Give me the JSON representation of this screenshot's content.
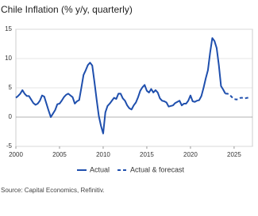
{
  "chart_data": {
    "type": "line",
    "title": "Chile Inflation (% y/y, quarterly)",
    "source": "Source: Capital Economics, Refinitiv.",
    "xlim": [
      2000,
      2027.1
    ],
    "xticks": [
      2000,
      2005,
      2010,
      2015,
      2020,
      2025
    ],
    "ylim": [
      -5,
      15
    ],
    "yticks": [
      -5,
      0,
      5,
      10,
      15
    ],
    "grid": true,
    "series": [
      {
        "name": "Actual",
        "color": "#1f4fad",
        "dashed": false,
        "x": [
          2000,
          2000.25,
          2000.5,
          2000.75,
          2001,
          2001.25,
          2001.5,
          2001.75,
          2002,
          2002.25,
          2002.5,
          2002.75,
          2003,
          2003.25,
          2003.5,
          2003.75,
          2004,
          2004.25,
          2004.5,
          2004.75,
          2005,
          2005.25,
          2005.5,
          2005.75,
          2006,
          2006.25,
          2006.5,
          2006.75,
          2007,
          2007.25,
          2007.5,
          2007.75,
          2008,
          2008.25,
          2008.5,
          2008.75,
          2009,
          2009.25,
          2009.5,
          2009.75,
          2010,
          2010.25,
          2010.5,
          2010.75,
          2011,
          2011.25,
          2011.5,
          2011.75,
          2012,
          2012.25,
          2012.5,
          2012.75,
          2013,
          2013.25,
          2013.5,
          2013.75,
          2014,
          2014.25,
          2014.5,
          2014.75,
          2015,
          2015.25,
          2015.5,
          2015.75,
          2016,
          2016.25,
          2016.5,
          2016.75,
          2017,
          2017.25,
          2017.5,
          2017.75,
          2018,
          2018.25,
          2018.5,
          2018.75,
          2019,
          2019.25,
          2019.5,
          2019.75,
          2020,
          2020.25,
          2020.5,
          2020.75,
          2021,
          2021.25,
          2021.5,
          2021.75,
          2022,
          2022.25,
          2022.5,
          2022.75,
          2023,
          2023.25,
          2023.5,
          2023.75,
          2024
        ],
        "values": [
          3.3,
          3.6,
          4.0,
          4.6,
          4.0,
          3.6,
          3.6,
          3.0,
          2.4,
          2.1,
          2.3,
          2.8,
          3.7,
          3.5,
          2.3,
          1.1,
          0.0,
          0.6,
          1.2,
          2.2,
          2.3,
          2.8,
          3.4,
          3.8,
          4.0,
          3.7,
          3.4,
          2.3,
          2.7,
          2.9,
          5.0,
          7.2,
          8.0,
          8.9,
          9.3,
          8.8,
          6.0,
          3.0,
          0.2,
          -1.5,
          -2.8,
          0.8,
          1.9,
          2.3,
          2.8,
          3.3,
          3.1,
          4.0,
          4.0,
          3.2,
          2.8,
          2.0,
          1.5,
          1.3,
          2.0,
          2.5,
          3.4,
          4.5,
          5.1,
          5.5,
          4.5,
          4.2,
          4.8,
          4.2,
          4.6,
          4.2,
          3.2,
          2.8,
          2.7,
          2.5,
          1.8,
          1.9,
          2.0,
          2.4,
          2.6,
          2.8,
          2.0,
          2.3,
          2.3,
          2.8,
          3.7,
          2.7,
          2.6,
          2.8,
          2.9,
          3.6,
          5.0,
          6.6,
          8.0,
          11.0,
          13.5,
          13.0,
          11.8,
          8.9,
          5.3,
          4.7,
          4.0
        ]
      },
      {
        "name": "Actual & forecast",
        "color": "#1f4fad",
        "dashed": true,
        "x": [
          2024,
          2024.25,
          2024.5,
          2024.75,
          2025,
          2025.25,
          2025.5,
          2025.75,
          2026,
          2026.25,
          2026.5,
          2026.75
        ],
        "values": [
          4.0,
          4.0,
          3.8,
          3.4,
          3.1,
          3.0,
          3.1,
          3.3,
          3.3,
          3.2,
          3.3,
          3.3
        ]
      }
    ]
  }
}
